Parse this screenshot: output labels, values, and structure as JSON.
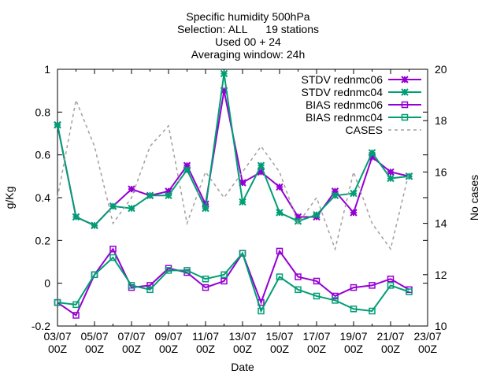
{
  "chart_data": {
    "type": "line",
    "title_lines": [
      "Specific humidity 500hPa",
      "Selection: ALL      19 stations",
      "Used 00 + 24",
      "Averaging window: 24h"
    ],
    "xlabel": "Date",
    "ylabel": "g/Kg",
    "y2label": "No cases",
    "ylim": [
      -0.2,
      1.0
    ],
    "y2lim": [
      10,
      20
    ],
    "y_ticks": [
      "-0.2",
      "0",
      "0.2",
      "0.4",
      "0.6",
      "0.8",
      "1"
    ],
    "y2_ticks": [
      "10",
      "12",
      "14",
      "16",
      "18",
      "20"
    ],
    "x_ticks": [
      {
        "date": "03/07",
        "time": "00Z"
      },
      {
        "date": "05/07",
        "time": "00Z"
      },
      {
        "date": "07/07",
        "time": "00Z"
      },
      {
        "date": "09/07",
        "time": "00Z"
      },
      {
        "date": "11/07",
        "time": "00Z"
      },
      {
        "date": "13/07",
        "time": "00Z"
      },
      {
        "date": "15/07",
        "time": "00Z"
      },
      {
        "date": "17/07",
        "time": "00Z"
      },
      {
        "date": "19/07",
        "time": "00Z"
      },
      {
        "date": "21/07",
        "time": "00Z"
      },
      {
        "date": "23/07",
        "time": "00Z"
      }
    ],
    "x": [
      "03/07",
      "04/07",
      "05/07",
      "06/07",
      "07/07",
      "08/07",
      "09/07",
      "10/07",
      "11/07",
      "12/07",
      "13/07",
      "14/07",
      "15/07",
      "16/07",
      "17/07",
      "18/07",
      "19/07",
      "20/07",
      "21/07",
      "22/07"
    ],
    "legend_position": "top-right",
    "grid": false,
    "series": [
      {
        "name": "STDV rednmc06",
        "axis": "y",
        "color": "#9400d3",
        "marker": "star",
        "dash": "",
        "values": [
          0.74,
          0.31,
          0.27,
          0.36,
          0.44,
          0.41,
          0.43,
          0.55,
          0.37,
          0.9,
          0.47,
          0.52,
          0.45,
          0.31,
          0.31,
          0.43,
          0.33,
          0.59,
          0.52,
          0.5
        ]
      },
      {
        "name": "STDV rednmc04",
        "axis": "y",
        "color": "#009e73",
        "marker": "star",
        "dash": "",
        "values": [
          0.74,
          0.31,
          0.27,
          0.36,
          0.35,
          0.41,
          0.41,
          0.53,
          0.35,
          0.98,
          0.38,
          0.55,
          0.33,
          0.29,
          0.32,
          0.41,
          0.42,
          0.61,
          0.49,
          0.5
        ]
      },
      {
        "name": "BIAS rednmc06",
        "axis": "y",
        "color": "#9400d3",
        "marker": "square",
        "dash": "",
        "values": [
          -0.09,
          -0.15,
          0.04,
          0.16,
          -0.02,
          -0.01,
          0.07,
          0.05,
          -0.02,
          0.01,
          0.14,
          -0.09,
          0.15,
          0.03,
          0.01,
          -0.06,
          -0.02,
          -0.01,
          0.02,
          -0.03
        ]
      },
      {
        "name": "BIAS rednmc04",
        "axis": "y",
        "color": "#009e73",
        "marker": "square",
        "dash": "",
        "values": [
          -0.09,
          -0.1,
          0.04,
          0.12,
          -0.01,
          -0.03,
          0.06,
          0.06,
          0.02,
          0.04,
          0.14,
          -0.13,
          0.03,
          -0.03,
          -0.06,
          -0.08,
          -0.12,
          -0.13,
          -0.01,
          -0.04
        ]
      },
      {
        "name": "CASES",
        "axis": "y2",
        "color": "#a0a0a0",
        "marker": "none",
        "dash": "4,4",
        "values": [
          15.0,
          18.8,
          17.0,
          14.0,
          15.0,
          17.0,
          17.8,
          14.0,
          16.0,
          15.0,
          16.0,
          17.0,
          16.0,
          14.0,
          15.0,
          13.0,
          16.0,
          14.0,
          13.0,
          16.0
        ]
      }
    ]
  }
}
